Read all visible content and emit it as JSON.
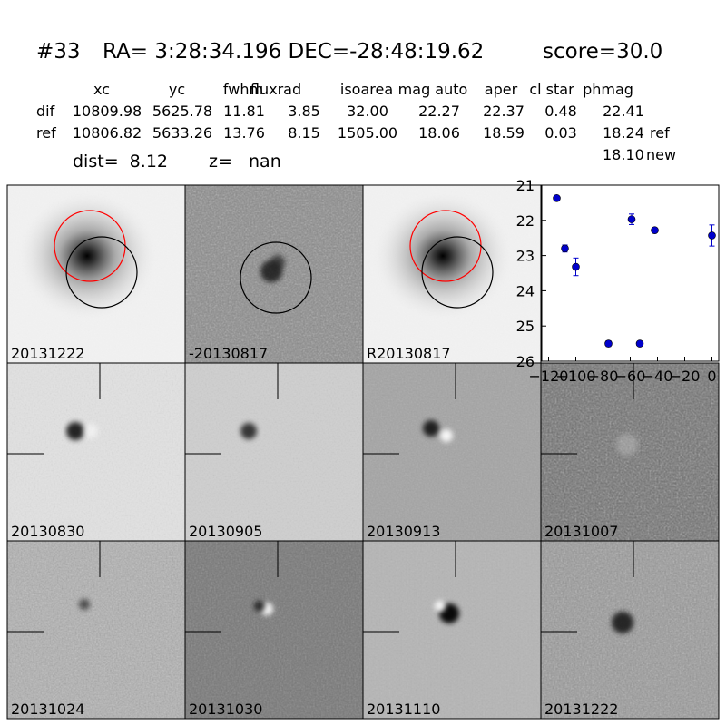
{
  "header": {
    "id": "#33",
    "coords": "RA= 3:28:34.196 DEC=-28:48:19.62",
    "score": "score=30.0"
  },
  "table": {
    "columns": [
      "xc",
      "yc",
      "fwhm",
      "fluxrad",
      "isoarea",
      "mag auto",
      "aper",
      "cl star",
      "phmag"
    ],
    "rows": [
      {
        "label": "dif",
        "cells": [
          "10809.98",
          "5625.78",
          "11.81",
          "3.85",
          "32.00",
          "22.27",
          "22.37",
          "0.48",
          "22.41"
        ]
      },
      {
        "label": "ref",
        "cells": [
          "10806.82",
          "5633.26",
          "13.76",
          "8.15",
          "1505.00",
          "18.06",
          "18.59",
          "0.03",
          "18.24"
        ],
        "tag": "ref"
      }
    ],
    "new_phmag": "18.10",
    "new_tag": "new"
  },
  "dist": "dist=  8.12",
  "z": "z=   nan",
  "panels": [
    "20131222",
    "-20130817",
    "R20130817",
    "20130830",
    "20130905",
    "20130913",
    "20131007",
    "20131024",
    "20131030",
    "20131110",
    "20131222"
  ],
  "highlight_panel_color": "#ff0000",
  "chart_data": {
    "type": "scatter",
    "x": [
      -114,
      -108,
      -100,
      -76,
      -59,
      -53,
      -42,
      0
    ],
    "values": [
      21.37,
      22.8,
      23.32,
      25.5,
      21.97,
      25.5,
      22.28,
      22.43
    ],
    "errors": [
      0.03,
      0.1,
      0.25,
      0.08,
      0.15,
      0.06,
      0.06,
      0.3
    ],
    "color": "#0000cc",
    "xlim": [
      -125,
      5
    ],
    "ylim": [
      26,
      21
    ],
    "invert_y": true,
    "xticks": [
      {
        "value": -120,
        "label": "−120"
      },
      {
        "value": -100,
        "label": "−100"
      },
      {
        "value": -80,
        "label": "−80"
      },
      {
        "value": -60,
        "label": "−60"
      },
      {
        "value": -40,
        "label": "−40"
      },
      {
        "value": -20,
        "label": "−20"
      },
      0
    ],
    "yticks": [
      21,
      22,
      23,
      24,
      25,
      26
    ]
  }
}
